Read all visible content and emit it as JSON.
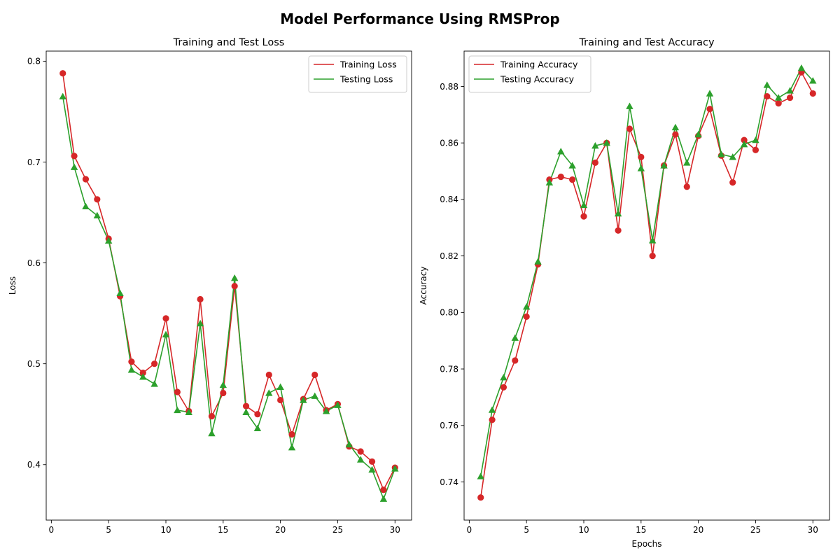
{
  "figure": {
    "title": "Model Performance Using RMSProp"
  },
  "chart_data": [
    {
      "type": "line",
      "title": "Training and Test Loss",
      "xlabel": "",
      "ylabel": "Loss",
      "xlim": [
        -0.45,
        31.45
      ],
      "ylim": [
        0.345,
        0.81
      ],
      "xticks": [
        0,
        5,
        10,
        15,
        20,
        25,
        30
      ],
      "yticks": [
        0.4,
        0.5,
        0.6,
        0.7,
        0.8
      ],
      "ytick_labels": [
        "0.4",
        "0.5",
        "0.6",
        "0.7",
        "0.8"
      ],
      "legend_position": "upper right",
      "x": [
        1,
        2,
        3,
        4,
        5,
        6,
        7,
        8,
        9,
        10,
        11,
        12,
        13,
        14,
        15,
        16,
        17,
        18,
        19,
        20,
        21,
        22,
        23,
        24,
        25,
        26,
        27,
        28,
        29,
        30
      ],
      "series": [
        {
          "name": "Training Loss",
          "color": "#d62728",
          "marker": "circle",
          "values": [
            0.788,
            0.706,
            0.683,
            0.663,
            0.624,
            0.567,
            0.502,
            0.491,
            0.5,
            0.545,
            0.472,
            0.453,
            0.564,
            0.448,
            0.471,
            0.577,
            0.458,
            0.45,
            0.489,
            0.464,
            0.43,
            0.465,
            0.489,
            0.454,
            0.46,
            0.418,
            0.413,
            0.403,
            0.375,
            0.397
          ]
        },
        {
          "name": "Testing Loss",
          "color": "#2ca02c",
          "marker": "triangle",
          "values": [
            0.765,
            0.695,
            0.656,
            0.647,
            0.622,
            0.57,
            0.494,
            0.487,
            0.48,
            0.529,
            0.454,
            0.452,
            0.54,
            0.431,
            0.479,
            0.585,
            0.452,
            0.436,
            0.471,
            0.477,
            0.417,
            0.464,
            0.468,
            0.453,
            0.459,
            0.42,
            0.405,
            0.395,
            0.366,
            0.396
          ]
        }
      ]
    },
    {
      "type": "line",
      "title": "Training and Test Accuracy",
      "xlabel": "Epochs",
      "ylabel": "Accuracy",
      "xlim": [
        -0.45,
        31.45
      ],
      "ylim": [
        0.7265,
        0.8925
      ],
      "xticks": [
        0,
        5,
        10,
        15,
        20,
        25,
        30
      ],
      "yticks": [
        0.74,
        0.76,
        0.78,
        0.8,
        0.82,
        0.84,
        0.86,
        0.88
      ],
      "ytick_labels": [
        "0.74",
        "0.76",
        "0.78",
        "0.80",
        "0.82",
        "0.84",
        "0.86",
        "0.88"
      ],
      "legend_position": "upper left",
      "x": [
        1,
        2,
        3,
        4,
        5,
        6,
        7,
        8,
        9,
        10,
        11,
        12,
        13,
        14,
        15,
        16,
        17,
        18,
        19,
        20,
        21,
        22,
        23,
        24,
        25,
        26,
        27,
        28,
        29,
        30
      ],
      "series": [
        {
          "name": "Training Accuracy",
          "color": "#d62728",
          "marker": "circle",
          "values": [
            0.7345,
            0.762,
            0.7735,
            0.783,
            0.7985,
            0.817,
            0.847,
            0.848,
            0.847,
            0.834,
            0.853,
            0.86,
            0.829,
            0.865,
            0.855,
            0.82,
            0.852,
            0.863,
            0.8445,
            0.8625,
            0.872,
            0.8555,
            0.846,
            0.861,
            0.8575,
            0.8765,
            0.874,
            0.876,
            0.885,
            0.8775
          ]
        },
        {
          "name": "Testing Accuracy",
          "color": "#2ca02c",
          "marker": "triangle",
          "values": [
            0.742,
            0.7655,
            0.777,
            0.791,
            0.802,
            0.818,
            0.846,
            0.857,
            0.852,
            0.838,
            0.859,
            0.86,
            0.835,
            0.873,
            0.851,
            0.8255,
            0.852,
            0.8655,
            0.853,
            0.863,
            0.8775,
            0.856,
            0.855,
            0.8595,
            0.861,
            0.8805,
            0.876,
            0.8785,
            0.8865,
            0.882
          ]
        }
      ]
    }
  ]
}
